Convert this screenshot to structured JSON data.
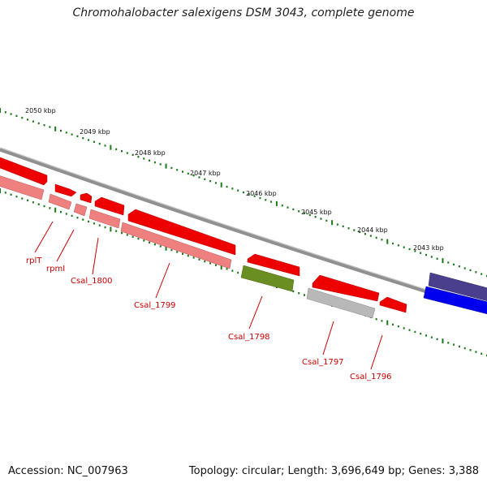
{
  "map": {
    "title": "Chromohalobacter salexigens DSM 3043, complete genome",
    "accession": "Accession: NC_007963",
    "stats": "Topology: circular; Length: 3,696,649 bp; Genes: 3,388",
    "colors": {
      "backbone": "#808080",
      "tick": "#1a7a1a",
      "label": "#cc0000",
      "gene_red": "#ee0000",
      "gene_pink": "#ee8080",
      "gene_olive": "#6b8e23",
      "gene_gray": "#b8b8b8",
      "gene_navy": "#4a3f8c",
      "gene_blue": "#0000ee"
    }
  },
  "kbp_labels": [
    "2050 kbp",
    "2049 kbp",
    "2048 kbp",
    "2047 kbp",
    "2046 kbp",
    "2045 kbp",
    "2044 kbp",
    "2043 kbp"
  ],
  "gene_labels": [
    "rplT",
    "rpmI",
    "Csal_1800",
    "Csal_1799",
    "Csal_1798",
    "Csal_1797",
    "Csal_1796"
  ]
}
